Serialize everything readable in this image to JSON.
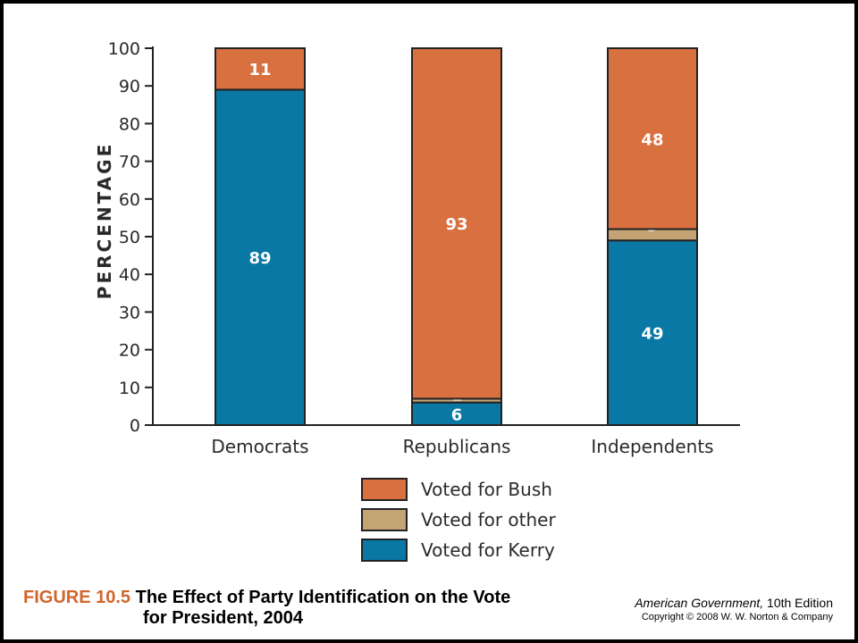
{
  "chart_data": {
    "type": "bar",
    "stacked": true,
    "categories": [
      "Democrats",
      "Republicans",
      "Independents"
    ],
    "series": [
      {
        "name": "Voted for Kerry",
        "values": [
          89,
          6,
          49
        ],
        "color": "#0a78a4"
      },
      {
        "name": "Voted for other",
        "values": [
          0,
          1,
          3
        ],
        "color": "#c4a474"
      },
      {
        "name": "Voted for Bush",
        "values": [
          11,
          93,
          48
        ],
        "color": "#d87040"
      }
    ],
    "data_labels": [
      [
        "89",
        "",
        "11"
      ],
      [
        "6",
        "1",
        "93"
      ],
      [
        "49",
        "3",
        "48"
      ]
    ],
    "ylabel": "PERCENTAGE",
    "ylim": [
      0,
      100
    ],
    "yticks": [
      0,
      10,
      20,
      30,
      40,
      50,
      60,
      70,
      80,
      90,
      100
    ],
    "legend_order": [
      "Voted for Bush",
      "Voted for other",
      "Voted for Kerry"
    ],
    "legend_placement": "bottom-center",
    "grid": false
  },
  "caption": {
    "figure_number": "FIGURE 10.5",
    "title_line1": "The Effect of Party Identification on the Vote",
    "title_line2": "for President, 2004"
  },
  "credit": {
    "book_title": "American Government,",
    "edition": " 10th Edition",
    "copyright": "Copyright © 2008 W. W. Norton & Company"
  },
  "colors": {
    "background": "#ffffff",
    "frame": "#000000",
    "figure_accent": "#d2652c",
    "bar_outline": "#222222"
  }
}
